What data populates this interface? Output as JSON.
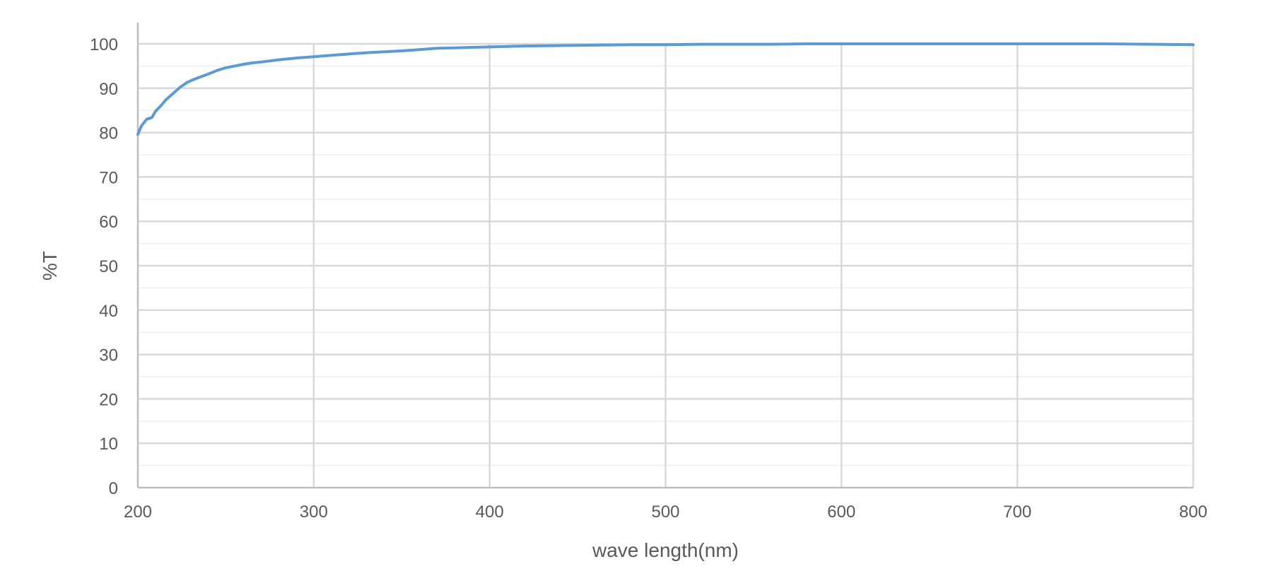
{
  "chart_data": {
    "type": "line",
    "xlabel": "wave length(nm)",
    "ylabel": "%T",
    "xlim": [
      200,
      800
    ],
    "ylim": [
      0,
      100
    ],
    "x_ticks": [
      "200",
      "300",
      "400",
      "500",
      "600",
      "700",
      "800"
    ],
    "y_ticks": [
      "0",
      "10",
      "20",
      "30",
      "40",
      "50",
      "60",
      "70",
      "80",
      "90",
      "100"
    ],
    "grid": true,
    "legend": "none",
    "colors": {
      "line": "#5b9bd5",
      "major_grid": "#d9d9d9",
      "minor_grid": "#efefef",
      "axis": "#bfbfbf"
    },
    "series": [
      {
        "x": [
          200,
          202,
          205,
          208,
          210,
          213,
          216,
          220,
          224,
          228,
          232,
          236,
          240,
          245,
          250,
          255,
          260,
          265,
          270,
          280,
          290,
          300,
          310,
          320,
          330,
          340,
          350,
          360,
          370,
          380,
          390,
          400,
          420,
          440,
          460,
          480,
          500,
          520,
          540,
          560,
          580,
          600,
          650,
          700,
          750,
          800
        ],
        "y": [
          79.6,
          81.5,
          83.0,
          83.4,
          84.8,
          86.0,
          87.4,
          88.8,
          90.2,
          91.3,
          92.0,
          92.6,
          93.2,
          94.0,
          94.6,
          95.0,
          95.4,
          95.7,
          95.9,
          96.4,
          96.8,
          97.1,
          97.4,
          97.7,
          98.0,
          98.2,
          98.4,
          98.7,
          99.0,
          99.1,
          99.2,
          99.3,
          99.5,
          99.6,
          99.7,
          99.8,
          99.8,
          99.9,
          99.9,
          99.9,
          100.0,
          100.0,
          100.0,
          100.0,
          100.0,
          99.8
        ]
      }
    ]
  }
}
